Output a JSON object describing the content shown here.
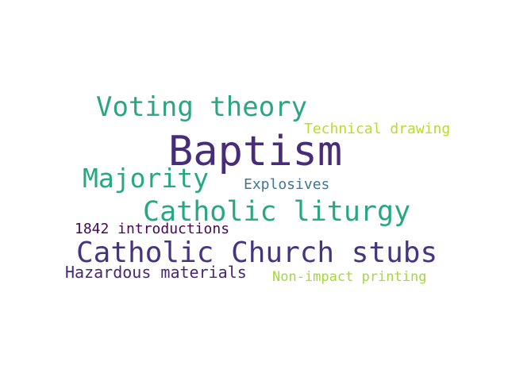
{
  "words": [
    {
      "text": "Baptism",
      "color": "#472c7a"
    },
    {
      "text": "Catholic Church stubs",
      "color": "#463480"
    },
    {
      "text": "Catholic liturgy",
      "color": "#26a884"
    },
    {
      "text": "Voting theory",
      "color": "#2aa684"
    },
    {
      "text": "Majority",
      "color": "#27a884"
    },
    {
      "text": "Hazardous materials",
      "color": "#482576"
    },
    {
      "text": "1842 introductions",
      "color": "#45055a"
    },
    {
      "text": "Explosives",
      "color": "#3e7790"
    },
    {
      "text": "Technical drawing",
      "color": "#b5dd2b"
    },
    {
      "text": "Non-impact printing",
      "color": "#a2da37"
    }
  ]
}
